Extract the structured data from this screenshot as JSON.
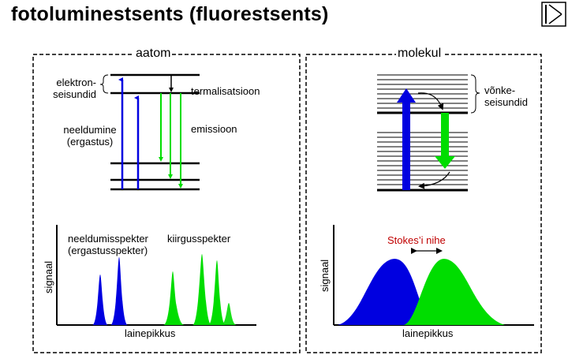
{
  "title": "fotoluminestsents (fluorestsents)",
  "icons": {
    "nav": "next-slide-icon"
  },
  "atom": {
    "heading": "aatom",
    "electron_states": "elektron-\nseisundid",
    "thermalization": "termalisatsioon",
    "absorption": "neeldumine\n(ergastus)",
    "emission": "emissioon",
    "absorption_spectrum": "neeldumisspekter\n(ergastusspekter)",
    "emission_spectrum": "kiirgusspekter",
    "y_axis": "signaal",
    "x_axis": "lainepikkus"
  },
  "molecule": {
    "heading": "molekul",
    "vibrational_states": "võnke-\nseisundid",
    "stokes_shift": "Stokes’i nihe",
    "y_axis": "signaal",
    "x_axis": "lainepikkus"
  },
  "colors": {
    "absorption": "#0000e0",
    "emission": "#00dd00",
    "stokes": "#c00000",
    "frame": "#000000"
  }
}
